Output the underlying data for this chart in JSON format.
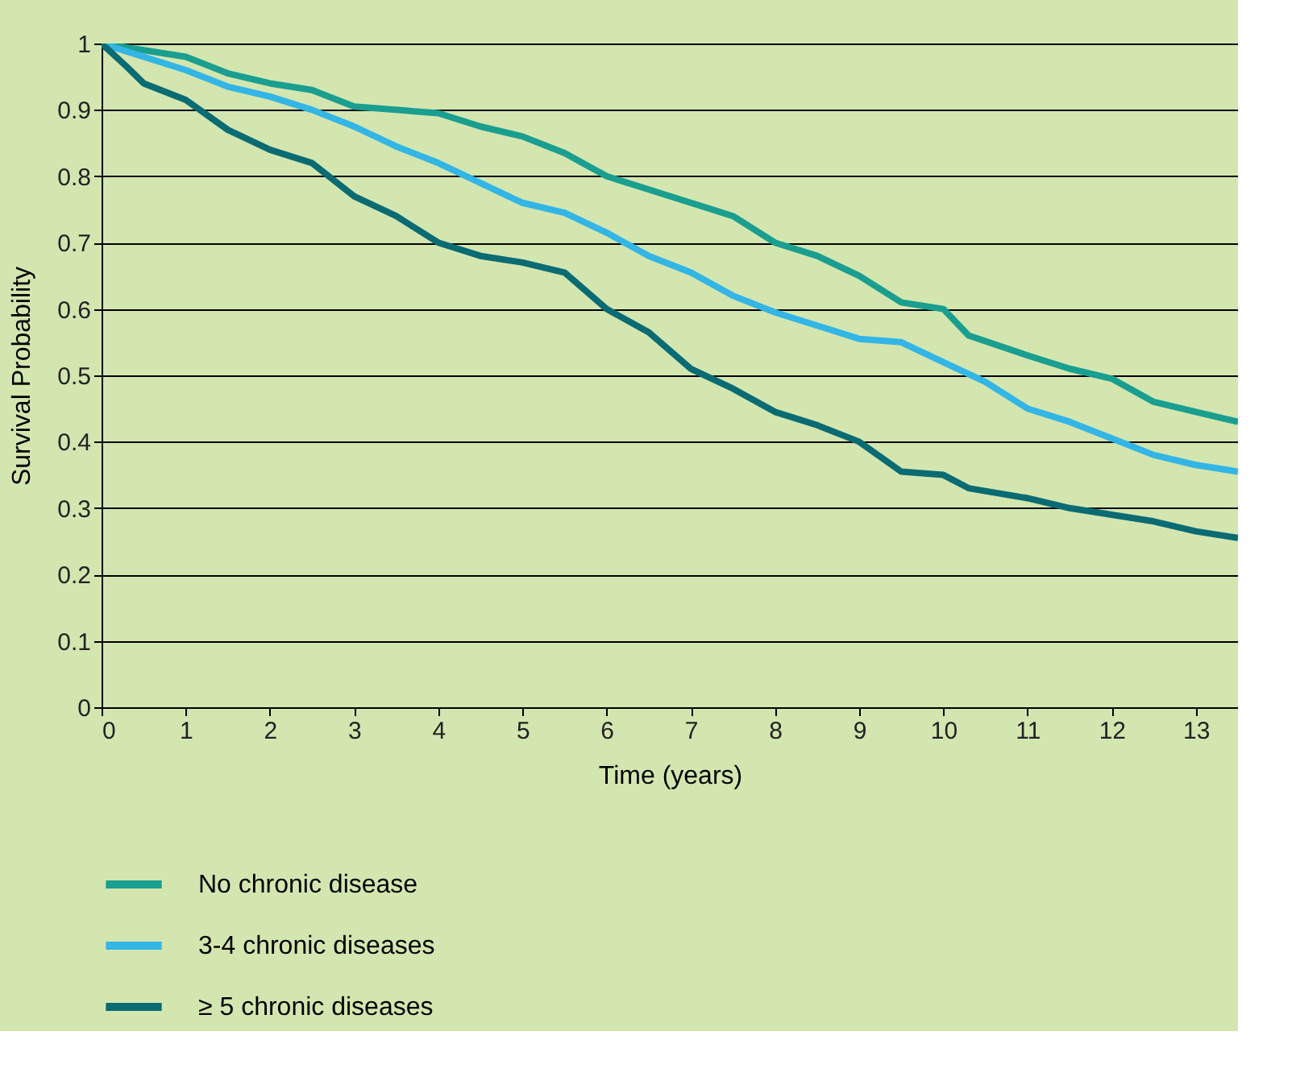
{
  "chart_data": {
    "type": "line",
    "xlabel": "Time (years)",
    "ylabel": "Survival Probability",
    "xlim": [
      0,
      13.5
    ],
    "xticks": [
      0,
      1,
      2,
      3,
      4,
      5,
      6,
      7,
      8,
      9,
      10,
      11,
      12,
      13
    ],
    "ylim": [
      0,
      1
    ],
    "yticks": [
      0,
      0.1,
      0.2,
      0.3,
      0.4,
      0.5,
      0.6,
      0.7,
      0.8,
      0.9,
      1
    ],
    "grid": "y",
    "legend": "bottom left",
    "marker": "none",
    "line_style": "solid",
    "series": [
      {
        "name": "No chronic disease",
        "color": "#1a9e8f",
        "x": [
          0,
          1,
          1.5,
          2,
          2.5,
          3,
          4,
          4.5,
          5,
          5.5,
          6,
          6.5,
          7,
          7.5,
          8,
          8.5,
          9,
          9.5,
          10,
          10.3,
          11,
          11.5,
          12,
          12.5,
          13,
          13.5
        ],
        "values": [
          1.0,
          0.98,
          0.955,
          0.94,
          0.93,
          0.905,
          0.895,
          0.875,
          0.86,
          0.835,
          0.8,
          0.78,
          0.76,
          0.74,
          0.7,
          0.68,
          0.65,
          0.61,
          0.6,
          0.56,
          0.53,
          0.51,
          0.495,
          0.46,
          0.445,
          0.43
        ]
      },
      {
        "name": "3-4 chronic diseases",
        "color": "#33b5e5",
        "x": [
          0,
          0.5,
          1,
          1.5,
          2,
          2.5,
          3,
          3.5,
          4,
          4.5,
          5,
          5.5,
          6,
          6.5,
          7,
          7.5,
          8,
          8.5,
          9,
          9.5,
          10,
          10.5,
          11,
          11.5,
          12,
          12.5,
          13,
          13.5
        ],
        "values": [
          1.0,
          0.98,
          0.96,
          0.935,
          0.92,
          0.9,
          0.875,
          0.845,
          0.82,
          0.79,
          0.76,
          0.745,
          0.715,
          0.68,
          0.655,
          0.62,
          0.595,
          0.575,
          0.555,
          0.55,
          0.52,
          0.49,
          0.45,
          0.43,
          0.405,
          0.38,
          0.365,
          0.355
        ]
      },
      {
        "name": "≥ 5 chronic diseases",
        "color": "#0b6b73",
        "x": [
          0,
          0.3,
          0.5,
          1,
          1.5,
          2,
          2.5,
          3,
          3.5,
          4,
          4.5,
          5,
          5.5,
          6,
          6.5,
          7,
          7.5,
          8,
          8.5,
          9,
          9.5,
          10,
          10.3,
          11,
          11.5,
          12,
          12.5,
          13,
          13.5
        ],
        "values": [
          1.0,
          0.965,
          0.94,
          0.915,
          0.87,
          0.84,
          0.82,
          0.77,
          0.74,
          0.7,
          0.68,
          0.67,
          0.655,
          0.6,
          0.565,
          0.51,
          0.48,
          0.445,
          0.425,
          0.4,
          0.355,
          0.35,
          0.33,
          0.315,
          0.3,
          0.29,
          0.28,
          0.265,
          0.255
        ]
      }
    ]
  }
}
